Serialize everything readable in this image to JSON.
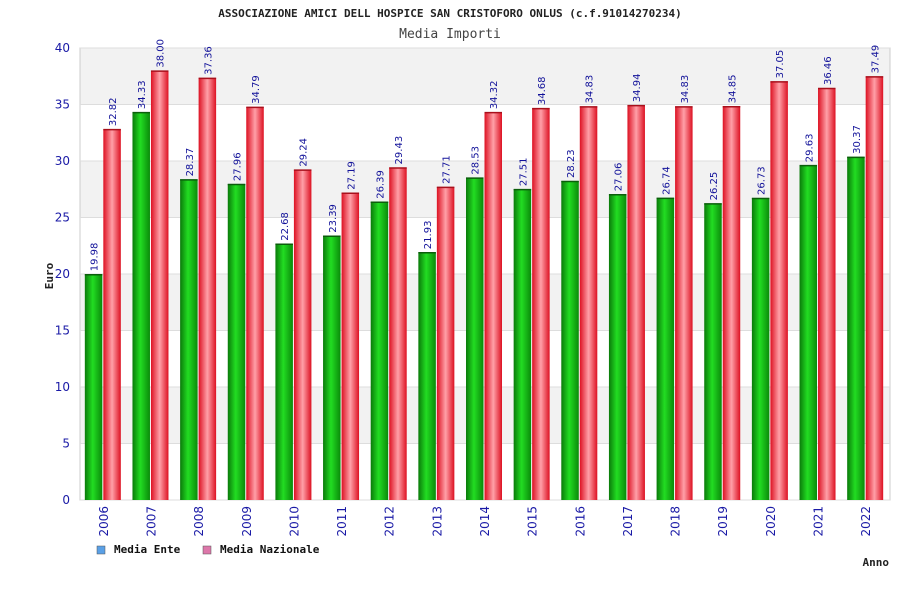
{
  "chart_data": {
    "type": "bar",
    "title": "ASSOCIAZIONE AMICI DELL HOSPICE SAN CRISTOFORO ONLUS (c.f.91014270234)",
    "subtitle": "Media Importi",
    "xlabel": "Anno",
    "ylabel": "Euro",
    "ylim": [
      0,
      40
    ],
    "yticks": [
      0,
      5,
      10,
      15,
      20,
      25,
      30,
      35,
      40
    ],
    "grid": true,
    "legend_position": "bottom-left",
    "categories": [
      "2006",
      "2007",
      "2008",
      "2009",
      "2010",
      "2011",
      "2012",
      "2013",
      "2014",
      "2015",
      "2016",
      "2017",
      "2018",
      "2019",
      "2020",
      "2021",
      "2022"
    ],
    "series": [
      {
        "name": "Media Ente",
        "color": "#11aa11",
        "legend_color": "#5aa0e6",
        "values": [
          19.98,
          34.33,
          28.37,
          27.96,
          22.68,
          23.39,
          26.39,
          21.93,
          28.53,
          27.51,
          28.23,
          27.06,
          26.74,
          26.25,
          26.73,
          29.63,
          30.37
        ],
        "labels": [
          "19.98",
          "34.33",
          "28.37",
          "27.96",
          "22.68",
          "23.39",
          "26.39",
          "21.93",
          "28.53",
          "27.51",
          "28.23",
          "27.06",
          "26.74",
          "26.25",
          "26.73",
          "29.63",
          "30.37"
        ]
      },
      {
        "name": "Media Nazionale",
        "color": "#ee2222",
        "legend_color": "#dd77aa",
        "values": [
          32.82,
          38.0,
          37.36,
          34.79,
          29.24,
          27.19,
          29.43,
          27.71,
          34.32,
          34.68,
          34.83,
          34.94,
          34.83,
          34.85,
          37.05,
          36.46,
          37.49
        ],
        "labels": [
          "32.82",
          "38.00",
          "37.36",
          "34.79",
          "29.24",
          "27.19",
          "29.43",
          "27.71",
          "34.32",
          "34.68",
          "34.83",
          "34.94",
          "34.83",
          "34.85",
          "37.05",
          "36.46",
          "37.49"
        ]
      }
    ]
  }
}
